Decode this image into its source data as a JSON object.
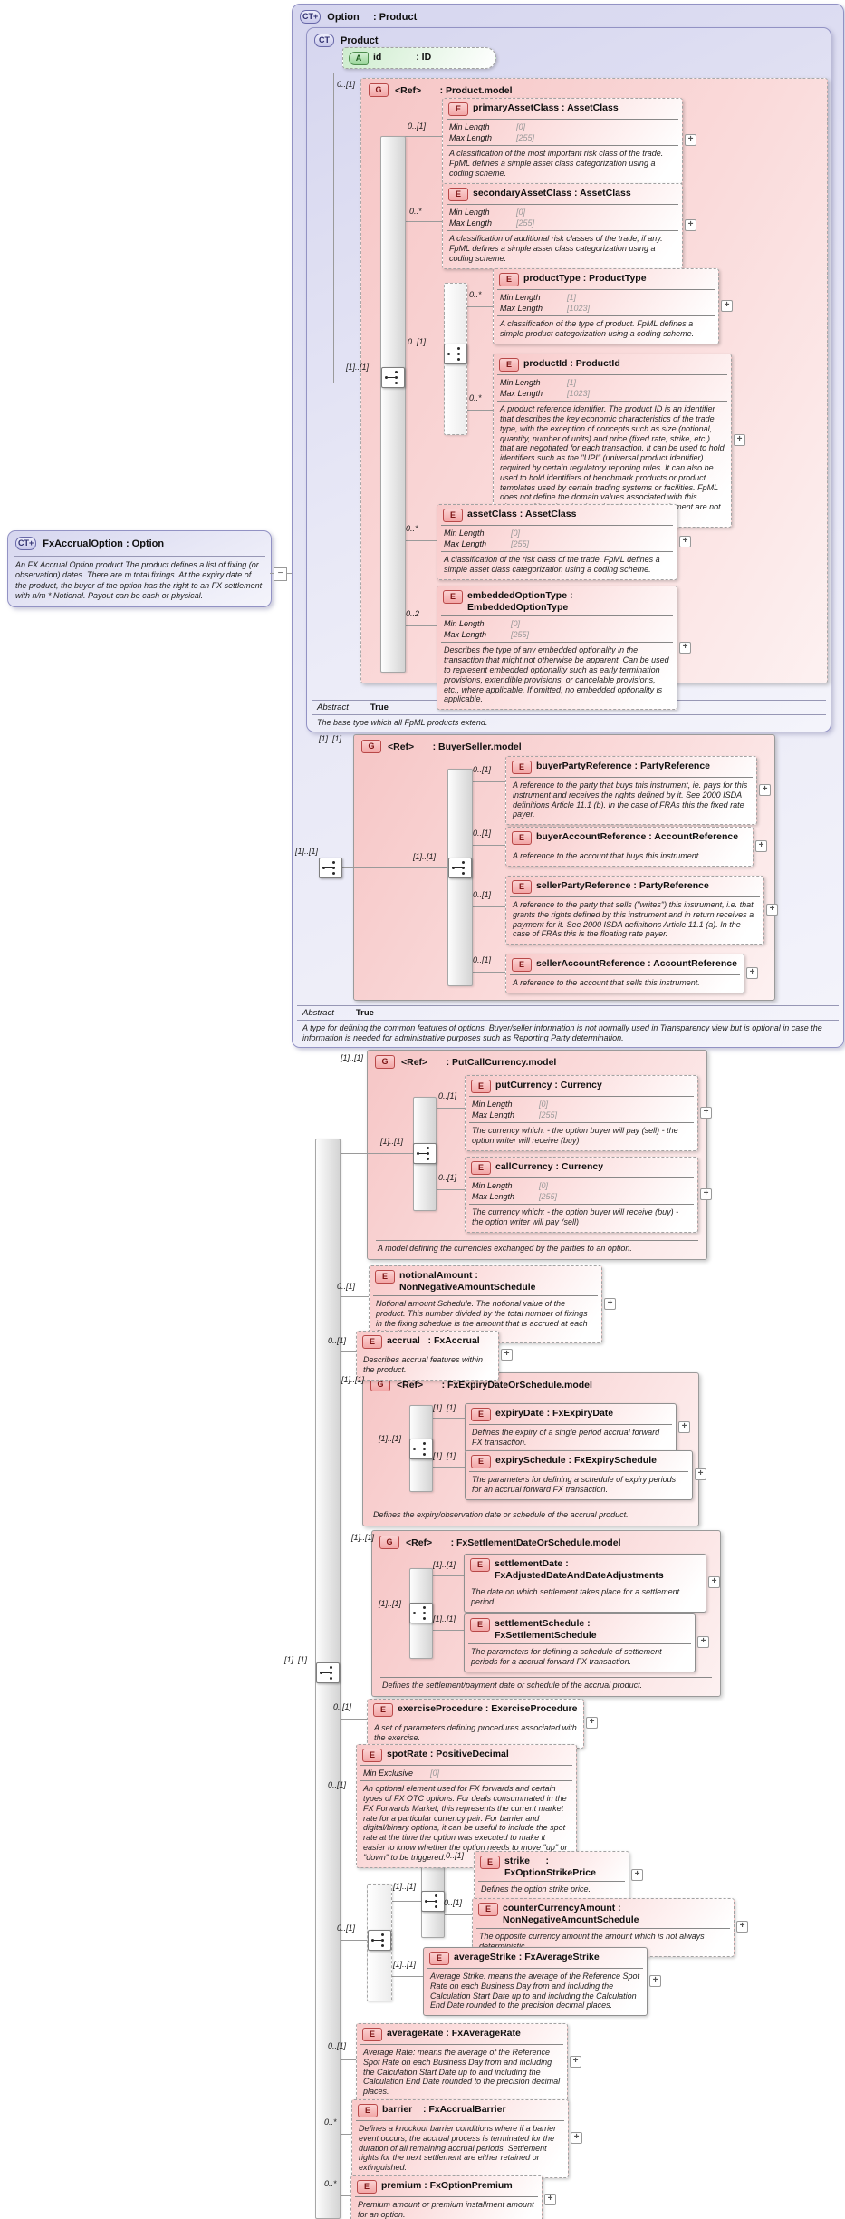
{
  "boxes": {
    "fxAccrualOption": {
      "badge": "CT+",
      "title": "FxAccrualOption : Option",
      "desc": "An FX Accrual Option product The product defines a list of fixing (or observation) dates. There are m total fixings. At the expiry date of the product, the buyer of the option has the right to an FX settlement with n/m * Notional. Payout can be cash or physical."
    },
    "option": {
      "badge": "CT+",
      "title": "Option     : Product",
      "abstract_label": "Abstract",
      "abstract_value": "True",
      "footer": "A type for defining the common features of options. Buyer/seller information is not normally used in Transparency view but is optional in case the information is needed for administrative purposes such as Reporting Party determination."
    },
    "product": {
      "badge": "CT",
      "title": "Product",
      "abstract_label": "Abstract",
      "abstract_value": "True",
      "footer": "The base type which all FpML products extend."
    }
  },
  "groups": {
    "productModel": {
      "badge": "G",
      "title": "<Ref>       : Product.model"
    },
    "buyerSeller": {
      "badge": "G",
      "title": "<Ref>       : BuyerSeller.model"
    },
    "putCall": {
      "badge": "G",
      "title": "<Ref>       : PutCallCurrency.model",
      "footer": "A model defining the currencies exchanged by the parties to an option."
    },
    "expiry": {
      "badge": "G",
      "title": "<Ref>       : FxExpiryDateOrSchedule.model",
      "footer": "Defines the expiry/observation date or schedule of the accrual product."
    },
    "settlement": {
      "badge": "G",
      "title": "<Ref>       : FxSettlementDateOrSchedule.model",
      "footer": "Defines the settlement/payment date or schedule of the accrual product."
    }
  },
  "elements": {
    "idAttr": {
      "badge": "A",
      "title": "id             : ID"
    },
    "primaryAssetClass": {
      "badge": "E",
      "title": "primaryAssetClass : AssetClass",
      "facets": [
        [
          "Min Length",
          "[0]"
        ],
        [
          "Max Length",
          "[255]"
        ]
      ],
      "desc": "A classification of the most important risk class of the trade. FpML defines a simple asset class categorization using a coding scheme.",
      "plus": true
    },
    "secondaryAssetClass": {
      "badge": "E",
      "title": "secondaryAssetClass : AssetClass",
      "facets": [
        [
          "Min Length",
          "[0]"
        ],
        [
          "Max Length",
          "[255]"
        ]
      ],
      "desc": "A classification of additional risk classes of the trade, if any. FpML defines a simple asset class categorization using a coding scheme.",
      "plus": true
    },
    "productType": {
      "badge": "E",
      "title": "productType : ProductType",
      "facets": [
        [
          "Min Length",
          "[1]"
        ],
        [
          "Max Length",
          "[1023]"
        ]
      ],
      "desc": "A classification of the type of product. FpML defines a simple product categorization using a coding scheme.",
      "plus": true
    },
    "productId": {
      "badge": "E",
      "title": "productId : ProductId",
      "facets": [
        [
          "Min Length",
          "[1]"
        ],
        [
          "Max Length",
          "[1023]"
        ]
      ],
      "desc": "A product reference identifier. The product ID is an identifier that describes the key economic characteristics of the trade type, with the exception of concepts such as size (notional, quantity, number of units) and price (fixed rate, strike, etc.) that are negotiated for each transaction. It can be used to hold identifiers such as the \"UPI\" (universal product identifier) required by certain regulatory reporting rules. It can also be used to hold identifiers of benchmark products or product templates used by certain trading systems or facilities. FpML does not define the domain values associated with this element. Note that the domain values for this element are not strictly an enumerated list.",
      "plus": true
    },
    "assetClass": {
      "badge": "E",
      "title": "assetClass : AssetClass",
      "facets": [
        [
          "Min Length",
          "[0]"
        ],
        [
          "Max Length",
          "[255]"
        ]
      ],
      "desc": "A classification of the risk class of the trade. FpML defines a simple asset class categorization using a coding scheme.",
      "plus": true
    },
    "embeddedOptionType": {
      "badge": "E",
      "title": "embeddedOptionType : EmbeddedOptionType",
      "facets": [
        [
          "Min Length",
          "[0]"
        ],
        [
          "Max Length",
          "[255]"
        ]
      ],
      "desc": "Describes the type of any embedded optionality in the transaction that might not otherwise be apparent. Can be used to represent embedded optionality such as early termination provisions, extendible provisions, or cancelable provisions, etc., where applicable. If omitted, no embedded optionality is applicable.",
      "plus": true
    },
    "buyerPartyReference": {
      "badge": "E",
      "title": "buyerPartyReference : PartyReference",
      "desc": "A reference to the party that buys this instrument, ie. pays for this instrument and receives the rights defined by it. See 2000 ISDA definitions Article 11.1 (b). In the case of FRAs this the fixed rate payer.",
      "plus": true
    },
    "buyerAccountReference": {
      "badge": "E",
      "title": "buyerAccountReference : AccountReference",
      "desc": "A reference to the account that buys this instrument.",
      "plus": true
    },
    "sellerPartyReference": {
      "badge": "E",
      "title": "sellerPartyReference : PartyReference",
      "desc": "A reference to the party that sells (\"writes\") this instrument, i.e. that grants the rights defined by this instrument and in return receives a payment for it. See 2000 ISDA definitions Article 11.1 (a). In the case of FRAs this is the floating rate payer.",
      "plus": true
    },
    "sellerAccountReference": {
      "badge": "E",
      "title": "sellerAccountReference : AccountReference",
      "desc": "A reference to the account that sells this instrument.",
      "plus": true
    },
    "putCurrency": {
      "badge": "E",
      "title": "putCurrency : Currency",
      "facets": [
        [
          "Min Length",
          "[0]"
        ],
        [
          "Max Length",
          "[255]"
        ]
      ],
      "desc": "The currency which: - the option buyer will pay (sell) - the option writer will receive (buy)",
      "plus": true
    },
    "callCurrency": {
      "badge": "E",
      "title": "callCurrency : Currency",
      "facets": [
        [
          "Min Length",
          "[0]"
        ],
        [
          "Max Length",
          "[255]"
        ]
      ],
      "desc": "The currency which: - the option buyer will receive (buy) - the option writer will pay (sell)",
      "plus": true
    },
    "notionalAmount": {
      "badge": "E",
      "title": "notionalAmount : NonNegativeAmountSchedule",
      "desc": "Notional amount Schedule. The notional value of the product. This number divided by the total number of fixings in the fixing schedule is the amount that is accrued at each fixing if the accrual factor is one.",
      "plus": true
    },
    "accrual": {
      "badge": "E",
      "title": "accrual   : FxAccrual",
      "desc": "Describes accrual features within the product.",
      "plus": true
    },
    "expiryDate": {
      "badge": "E",
      "title": "expiryDate : FxExpiryDate",
      "desc": "Defines the expiry of a single period accrual forward FX transaction.",
      "plus": true
    },
    "expirySchedule": {
      "badge": "E",
      "title": "expirySchedule : FxExpirySchedule",
      "desc": "The parameters for defining a schedule of expiry periods for an accrual forward FX transaction.",
      "plus": true
    },
    "settlementDate": {
      "badge": "E",
      "title": "settlementDate : FxAdjustedDateAndDateAdjustments",
      "desc": "The date on which settlement takes place for a settlement period.",
      "plus": true
    },
    "settlementSchedule": {
      "badge": "E",
      "title": "settlementSchedule : FxSettlementSchedule",
      "desc": "The parameters for defining a schedule of settlement periods for a accrual forward FX transaction.",
      "plus": true
    },
    "exerciseProcedure": {
      "badge": "E",
      "title": "exerciseProcedure : ExerciseProcedure",
      "desc": "A set of parameters defining procedures associated with the exercise.",
      "plus": true
    },
    "spotRate": {
      "badge": "E",
      "title": "spotRate : PositiveDecimal",
      "facets": [
        [
          "Min Exclusive",
          "[0]"
        ]
      ],
      "desc": "An optional element used for FX forwards and certain types of FX OTC options. For deals consummated in the FX Forwards Market, this represents the current market rate for a particular currency pair. For barrier and digital/binary options, it can be useful to include the spot rate at the time the option was executed to make it easier to know whether the option needs to move \"up\" or \"down\" to be triggered."
    },
    "strike": {
      "badge": "E",
      "title": "strike      : FxOptionStrikePrice",
      "desc": "Defines the option strike price.",
      "plus": true
    },
    "counterCurrencyAmount": {
      "badge": "E",
      "title": "counterCurrencyAmount : NonNegativeAmountSchedule",
      "desc": "The opposite currency amount the amount which is not always deterministic.",
      "plus": true
    },
    "averageStrike": {
      "badge": "E",
      "title": "averageStrike : FxAverageStrike",
      "desc": "Average Strike: means the average of the Reference Spot Rate on each Business Day from and including the Calculation Start Date up to and including the Calculation End Date rounded to the precision decimal places.",
      "plus": true
    },
    "averageRate": {
      "badge": "E",
      "title": "averageRate : FxAverageRate",
      "desc": "Average Rate: means the average of the Reference Spot Rate on each Business Day from and including the Calculation Start Date up to and including the Calculation End Date rounded to the precision decimal places.",
      "plus": true
    },
    "barrier": {
      "badge": "E",
      "title": "barrier    : FxAccrualBarrier",
      "desc": "Defines a knockout barrier conditions where if a barrier event occurs, the accrual process is terminated for the duration of all remaining accrual periods. Settlement rights for the next settlement are either retained or extinguished.",
      "plus": true
    },
    "premium": {
      "badge": "E",
      "title": "premium : FxOptionPremium",
      "desc": "Premium amount or premium installment amount for an option.",
      "plus": true
    }
  },
  "cards": {
    "productModelGroup": "0..[1]",
    "productModelSeq": "[1]..[1]",
    "primaryAssetClass": "0..[1]",
    "secondaryAssetClass": "0..*",
    "ptChoice": "0..[1]",
    "productType": "0..*",
    "productId": "0..*",
    "assetClass": "0..*",
    "embeddedOptionType": "0..2",
    "optionSeq": "[1]..[1]",
    "buyerSellerGroup": "[1]..[1]",
    "buyerSellerSeq": "[1]..[1]",
    "buyerPartyReference": "0..[1]",
    "buyerAccountReference": "0..[1]",
    "sellerPartyReference": "0..[1]",
    "sellerAccountReference": "0..[1]",
    "mainSeq": "[1]..[1]",
    "putCallGroup": "[1]..[1]",
    "putCallSeq": "[1]..[1]",
    "putCurrency": "0..[1]",
    "callCurrency": "0..[1]",
    "notionalAmount": "0..[1]",
    "accrual": "0..[1]",
    "expiryGroup": "[1]..[1]",
    "expiryChoice": "[1]..[1]",
    "expiryDate": "[1]..[1]",
    "expirySchedule": "[1]..[1]",
    "settlementGroup": "[1]..[1]",
    "settlementChoice": "[1]..[1]",
    "settlementDate": "[1]..[1]",
    "settlementSchedule": "[1]..[1]",
    "exerciseProcedure": "0..[1]",
    "spotRate": "0..[1]",
    "strikeChoice": "0..[1]",
    "strikeSeq": "[1]..[1]",
    "strike": "0..[1]",
    "counterCurrencyAmount": "0..[1]",
    "averageStrike": "[1]..[1]",
    "averageRate": "0..[1]",
    "barrier": "0..*",
    "premium": "0..*"
  },
  "icons": {
    "collapse": "−",
    "expand": "+"
  }
}
